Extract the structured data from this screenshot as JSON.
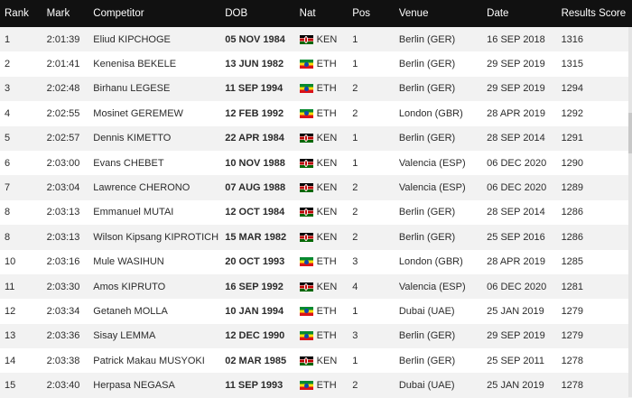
{
  "headers": {
    "rank": "Rank",
    "mark": "Mark",
    "competitor": "Competitor",
    "dob": "DOB",
    "nat": "Nat",
    "pos": "Pos",
    "venue": "Venue",
    "date": "Date",
    "score": "Results Score"
  },
  "rows": [
    {
      "rank": "1",
      "mark": "2:01:39",
      "competitor": "Eliud KIPCHOGE",
      "dob": "05 NOV 1984",
      "nat": "KEN",
      "pos": "1",
      "venue": "Berlin (GER)",
      "date": "16 SEP 2018",
      "score": "1316"
    },
    {
      "rank": "2",
      "mark": "2:01:41",
      "competitor": "Kenenisa BEKELE",
      "dob": "13 JUN 1982",
      "nat": "ETH",
      "pos": "1",
      "venue": "Berlin (GER)",
      "date": "29 SEP 2019",
      "score": "1315"
    },
    {
      "rank": "3",
      "mark": "2:02:48",
      "competitor": "Birhanu LEGESE",
      "dob": "11 SEP 1994",
      "nat": "ETH",
      "pos": "2",
      "venue": "Berlin (GER)",
      "date": "29 SEP 2019",
      "score": "1294"
    },
    {
      "rank": "4",
      "mark": "2:02:55",
      "competitor": "Mosinet GEREMEW",
      "dob": "12 FEB 1992",
      "nat": "ETH",
      "pos": "2",
      "venue": "London (GBR)",
      "date": "28 APR 2019",
      "score": "1292"
    },
    {
      "rank": "5",
      "mark": "2:02:57",
      "competitor": "Dennis KIMETTO",
      "dob": "22 APR 1984",
      "nat": "KEN",
      "pos": "1",
      "venue": "Berlin (GER)",
      "date": "28 SEP 2014",
      "score": "1291"
    },
    {
      "rank": "6",
      "mark": "2:03:00",
      "competitor": "Evans CHEBET",
      "dob": "10 NOV 1988",
      "nat": "KEN",
      "pos": "1",
      "venue": "Valencia (ESP)",
      "date": "06 DEC 2020",
      "score": "1290"
    },
    {
      "rank": "7",
      "mark": "2:03:04",
      "competitor": "Lawrence CHERONO",
      "dob": "07 AUG 1988",
      "nat": "KEN",
      "pos": "2",
      "venue": "Valencia (ESP)",
      "date": "06 DEC 2020",
      "score": "1289"
    },
    {
      "rank": "8",
      "mark": "2:03:13",
      "competitor": "Emmanuel MUTAI",
      "dob": "12 OCT 1984",
      "nat": "KEN",
      "pos": "2",
      "venue": "Berlin (GER)",
      "date": "28 SEP 2014",
      "score": "1286"
    },
    {
      "rank": "8",
      "mark": "2:03:13",
      "competitor": "Wilson Kipsang KIPROTICH",
      "dob": "15 MAR 1982",
      "nat": "KEN",
      "pos": "2",
      "venue": "Berlin (GER)",
      "date": "25 SEP 2016",
      "score": "1286"
    },
    {
      "rank": "10",
      "mark": "2:03:16",
      "competitor": "Mule WASIHUN",
      "dob": "20 OCT 1993",
      "nat": "ETH",
      "pos": "3",
      "venue": "London (GBR)",
      "date": "28 APR 2019",
      "score": "1285"
    },
    {
      "rank": "11",
      "mark": "2:03:30",
      "competitor": "Amos KIPRUTO",
      "dob": "16 SEP 1992",
      "nat": "KEN",
      "pos": "4",
      "venue": "Valencia (ESP)",
      "date": "06 DEC 2020",
      "score": "1281"
    },
    {
      "rank": "12",
      "mark": "2:03:34",
      "competitor": "Getaneh MOLLA",
      "dob": "10 JAN 1994",
      "nat": "ETH",
      "pos": "1",
      "venue": "Dubai (UAE)",
      "date": "25 JAN 2019",
      "score": "1279"
    },
    {
      "rank": "13",
      "mark": "2:03:36",
      "competitor": "Sisay LEMMA",
      "dob": "12 DEC 1990",
      "nat": "ETH",
      "pos": "3",
      "venue": "Berlin (GER)",
      "date": "29 SEP 2019",
      "score": "1279"
    },
    {
      "rank": "14",
      "mark": "2:03:38",
      "competitor": "Patrick Makau MUSYOKI",
      "dob": "02 MAR 1985",
      "nat": "KEN",
      "pos": "1",
      "venue": "Berlin (GER)",
      "date": "25 SEP 2011",
      "score": "1278"
    },
    {
      "rank": "15",
      "mark": "2:03:40",
      "competitor": "Herpasa NEGASA",
      "dob": "11 SEP 1993",
      "nat": "ETH",
      "pos": "2",
      "venue": "Dubai (UAE)",
      "date": "25 JAN 2019",
      "score": "1278"
    }
  ]
}
